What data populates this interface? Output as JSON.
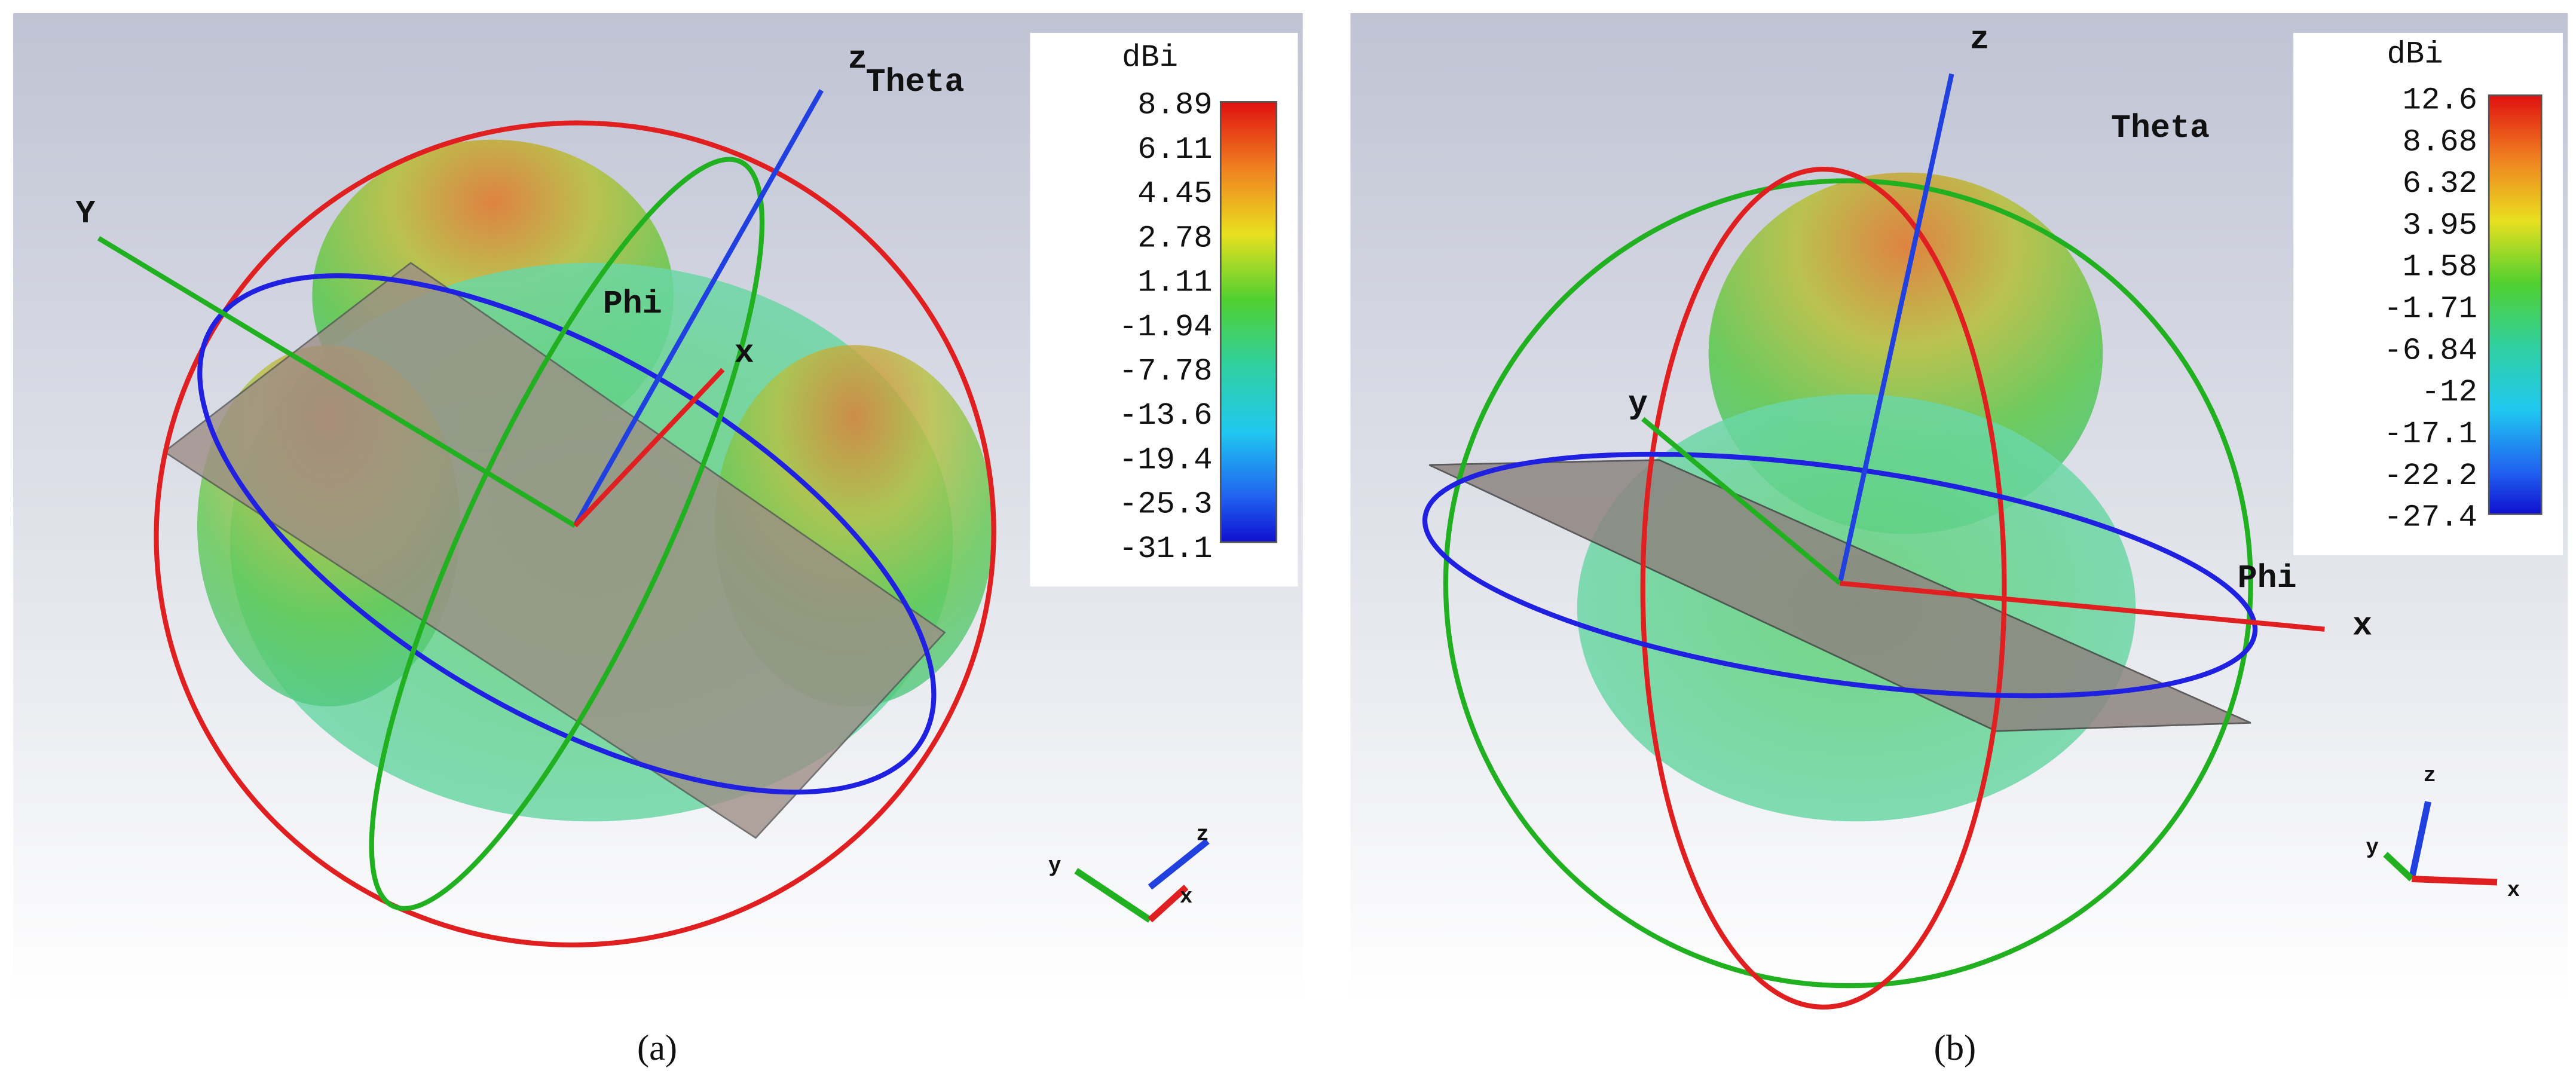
{
  "panels": [
    {
      "caption": "(a)",
      "colorbar": {
        "unit": "dBi",
        "ticks": [
          "8.89",
          "6.11",
          "4.45",
          "2.78",
          "1.11",
          "-1.94",
          "-7.78",
          "-13.6",
          "-19.4",
          "-25.3",
          "-31.1"
        ]
      },
      "axis_labels": {
        "z": "z",
        "theta": "Theta",
        "y": "Y",
        "phi": "Phi",
        "x": "x"
      },
      "mini_axes": {
        "z": "z",
        "y": "y",
        "x": "x"
      }
    },
    {
      "caption": "(b)",
      "colorbar": {
        "unit": "dBi",
        "ticks": [
          "12.6",
          "8.68",
          "6.32",
          "3.95",
          "1.58",
          "-1.71",
          "-6.84",
          "-12",
          "-17.1",
          "-22.2",
          "-27.4"
        ]
      },
      "axis_labels": {
        "z": "z",
        "theta": "Theta",
        "y": "y",
        "phi": "Phi",
        "x": "x"
      },
      "mini_axes": {
        "z": "z",
        "y": "y",
        "x": "x"
      }
    }
  ]
}
